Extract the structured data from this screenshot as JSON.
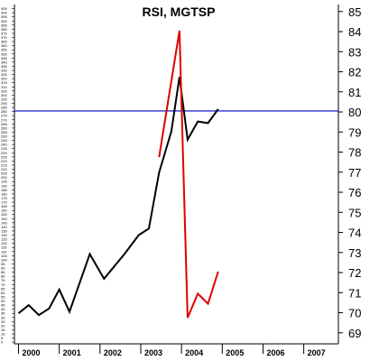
{
  "chart_data": {
    "type": "line",
    "title": "RSI, MGTSP",
    "xlabel": "",
    "ylabel": "",
    "x_ticks": [
      "2000",
      "2001",
      "2002",
      "2003",
      "2004",
      "2005",
      "2006",
      "2007"
    ],
    "x_range": [
      1999.9,
      2007.85
    ],
    "left_axis": {
      "range": [
        -2,
        410
      ],
      "ticks": [
        0,
        5,
        10,
        15,
        20,
        25,
        30,
        35,
        40,
        45,
        50,
        55,
        60,
        65,
        70,
        75,
        80,
        85,
        90,
        95,
        100,
        105,
        110,
        115,
        120,
        125,
        130,
        135,
        140,
        145,
        150,
        155,
        160,
        165,
        170,
        175,
        180,
        185,
        190,
        195,
        200,
        205,
        210,
        215,
        220,
        225,
        230,
        235,
        240,
        245,
        250,
        255,
        260,
        265,
        270,
        275,
        280,
        285,
        290,
        295,
        300,
        305,
        310,
        315,
        320,
        325,
        330,
        335,
        340,
        345,
        350,
        355,
        360,
        365,
        370,
        375,
        380,
        385,
        390,
        395,
        400,
        405
      ]
    },
    "right_axis": {
      "range": [
        68.45,
        85.35
      ],
      "ticks": [
        69,
        70,
        71,
        72,
        73,
        74,
        75,
        76,
        77,
        78,
        79,
        80,
        81,
        82,
        83,
        84,
        85
      ]
    },
    "reference_line": {
      "axis": "right",
      "value": 80.05,
      "color": "#0000cc"
    },
    "grid": false,
    "series": [
      {
        "color": "#000000",
        "axis": "left",
        "x": [
          2000.0,
          2000.25,
          2000.5,
          2000.75,
          2001.0,
          2001.25,
          2001.75,
          2002.1,
          2002.6,
          2002.95,
          2003.2,
          2003.45,
          2003.75,
          2003.95,
          2004.15,
          2004.4,
          2004.65,
          2004.9
        ],
        "y": [
          35,
          45,
          33,
          41,
          64,
          37,
          107,
          77,
          107,
          130,
          138,
          206,
          256,
          322,
          246,
          268,
          266,
          283
        ]
      },
      {
        "color": "#e00000",
        "axis": "right",
        "x": [
          2003.45,
          2003.95,
          2004.15,
          2004.4,
          2004.65,
          2004.9
        ],
        "y": [
          77.75,
          84.05,
          69.75,
          70.95,
          70.45,
          72.05
        ]
      }
    ]
  }
}
